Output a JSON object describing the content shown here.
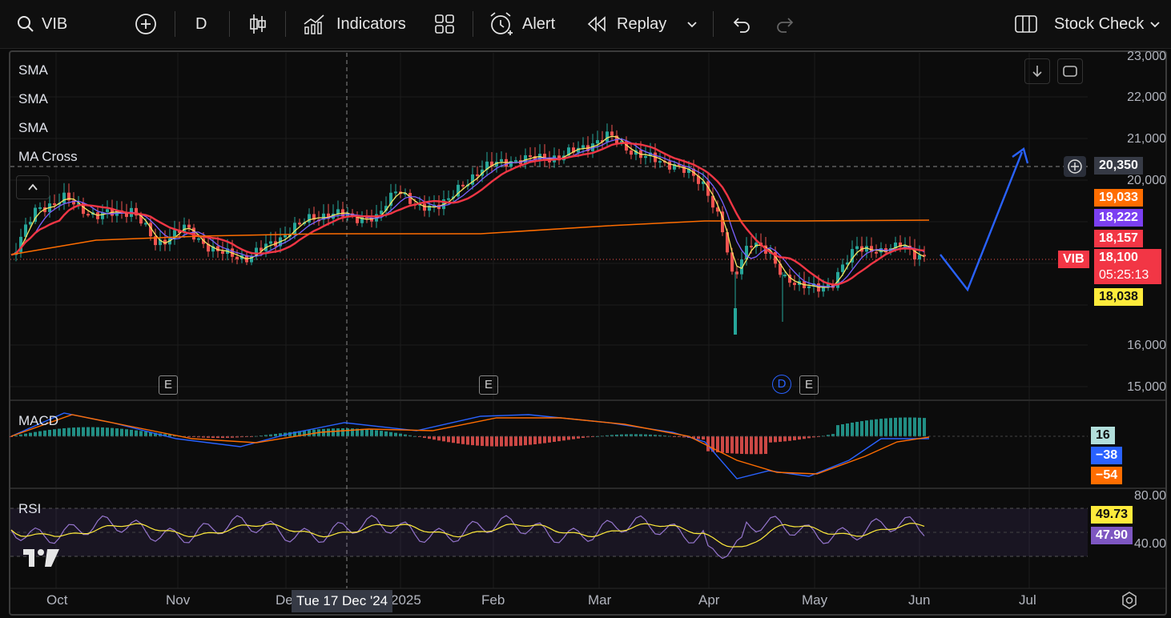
{
  "toolbar": {
    "symbol": "VIB",
    "interval": "D",
    "indicators_label": "Indicators",
    "alert_label": "Alert",
    "replay_label": "Replay",
    "stock_check_label": "Stock Check",
    "icons": [
      "search-icon",
      "add-symbol-icon",
      "candles-icon",
      "indicators-icon",
      "layout-icon",
      "alert-icon",
      "replay-icon",
      "chevron-down-icon",
      "undo-icon",
      "redo-icon",
      "panels-icon"
    ]
  },
  "main_pane": {
    "indicator_labels": [
      "SMA",
      "SMA",
      "SMA",
      "MA Cross"
    ],
    "price_axis": [
      "23,000",
      "22,000",
      "21,000",
      "20,000",
      "16,000",
      "15,000"
    ],
    "crosshair_price": "20,350",
    "tags": {
      "ma1": "19,033",
      "ma2": "18,222",
      "ma3": "18,157",
      "symbol": "VIB",
      "last_price": "18,100",
      "countdown": "05:25:13",
      "ma4": "18,038"
    },
    "event_marks": [
      "E",
      "E",
      "D",
      "E"
    ]
  },
  "macd_pane": {
    "label": "MACD",
    "histogram": "16",
    "macd": "−38",
    "signal": "−54"
  },
  "rsi_pane": {
    "label": "RSI",
    "upper": "80.00",
    "rsi_ma": "49.73",
    "rsi": "47.90",
    "lower": "40.00"
  },
  "time_axis": {
    "labels": [
      "Oct",
      "Nov",
      "De",
      "2025",
      "Feb",
      "Mar",
      "Apr",
      "May",
      "Jun",
      "Jul"
    ],
    "crosshair_date": "Tue 17 Dec '24"
  },
  "colors": {
    "up": "#26a69a",
    "down": "#ef5350",
    "sma_fast": "#f5e663",
    "sma_mid": "#7b61ff",
    "sma_slow": "#f23645",
    "ma_long": "#ff6d00",
    "projection": "#2962ff"
  }
}
